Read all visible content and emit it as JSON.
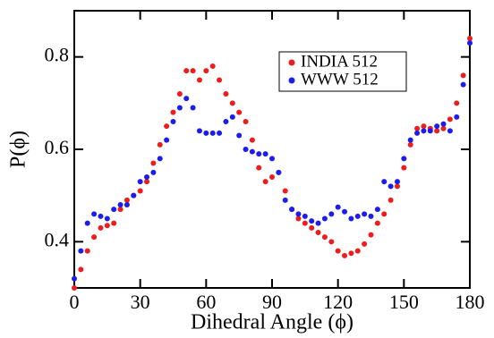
{
  "chart_data": {
    "type": "scatter",
    "xlabel": "Dihedral Angle (ϕ)",
    "ylabel": "P(ϕ)",
    "x": [
      0,
      3,
      6,
      9,
      12,
      15,
      18,
      21,
      24,
      27,
      30,
      33,
      36,
      39,
      42,
      45,
      48,
      51,
      54,
      57,
      60,
      63,
      66,
      69,
      72,
      75,
      78,
      81,
      84,
      87,
      90,
      93,
      96,
      99,
      102,
      105,
      108,
      111,
      114,
      117,
      120,
      123,
      126,
      129,
      132,
      135,
      138,
      141,
      144,
      147,
      150,
      153,
      156,
      159,
      162,
      165,
      168,
      171,
      174,
      177,
      180
    ],
    "series": [
      {
        "name": "INDIA 512",
        "color": "#ee1c1c",
        "values": [
          0.3,
          0.34,
          0.38,
          0.41,
          0.43,
          0.435,
          0.44,
          0.47,
          0.49,
          0.5,
          0.51,
          0.53,
          0.57,
          0.61,
          0.65,
          0.68,
          0.72,
          0.77,
          0.77,
          0.75,
          0.77,
          0.78,
          0.75,
          0.72,
          0.7,
          0.68,
          0.66,
          0.62,
          0.56,
          0.53,
          0.54,
          0.55,
          0.51,
          0.47,
          0.45,
          0.44,
          0.43,
          0.42,
          0.41,
          0.4,
          0.38,
          0.37,
          0.375,
          0.38,
          0.395,
          0.415,
          0.44,
          0.46,
          0.49,
          0.52,
          0.56,
          0.61,
          0.645,
          0.65,
          0.645,
          0.64,
          0.645,
          0.665,
          0.7,
          0.76,
          0.84
        ]
      },
      {
        "name": "WWW 512",
        "color": "#1c1cee",
        "values": [
          0.32,
          0.38,
          0.44,
          0.46,
          0.455,
          0.45,
          0.47,
          0.48,
          0.48,
          0.5,
          0.53,
          0.54,
          0.55,
          0.58,
          0.62,
          0.66,
          0.69,
          0.71,
          0.69,
          0.64,
          0.635,
          0.635,
          0.635,
          0.66,
          0.67,
          0.63,
          0.6,
          0.595,
          0.59,
          0.59,
          0.58,
          0.55,
          0.49,
          0.47,
          0.46,
          0.455,
          0.445,
          0.44,
          0.45,
          0.46,
          0.475,
          0.465,
          0.45,
          0.455,
          0.46,
          0.455,
          0.47,
          0.53,
          0.52,
          0.53,
          0.58,
          0.62,
          0.635,
          0.64,
          0.64,
          0.65,
          0.655,
          0.64,
          0.67,
          0.74,
          0.83
        ]
      }
    ],
    "xlim": [
      0,
      180
    ],
    "xticks": [
      0,
      30,
      60,
      90,
      120,
      150,
      180
    ],
    "ylim": [
      0.3,
      0.9
    ],
    "yticks": [
      0.4,
      0.6,
      0.8
    ],
    "legend": "upper right"
  }
}
